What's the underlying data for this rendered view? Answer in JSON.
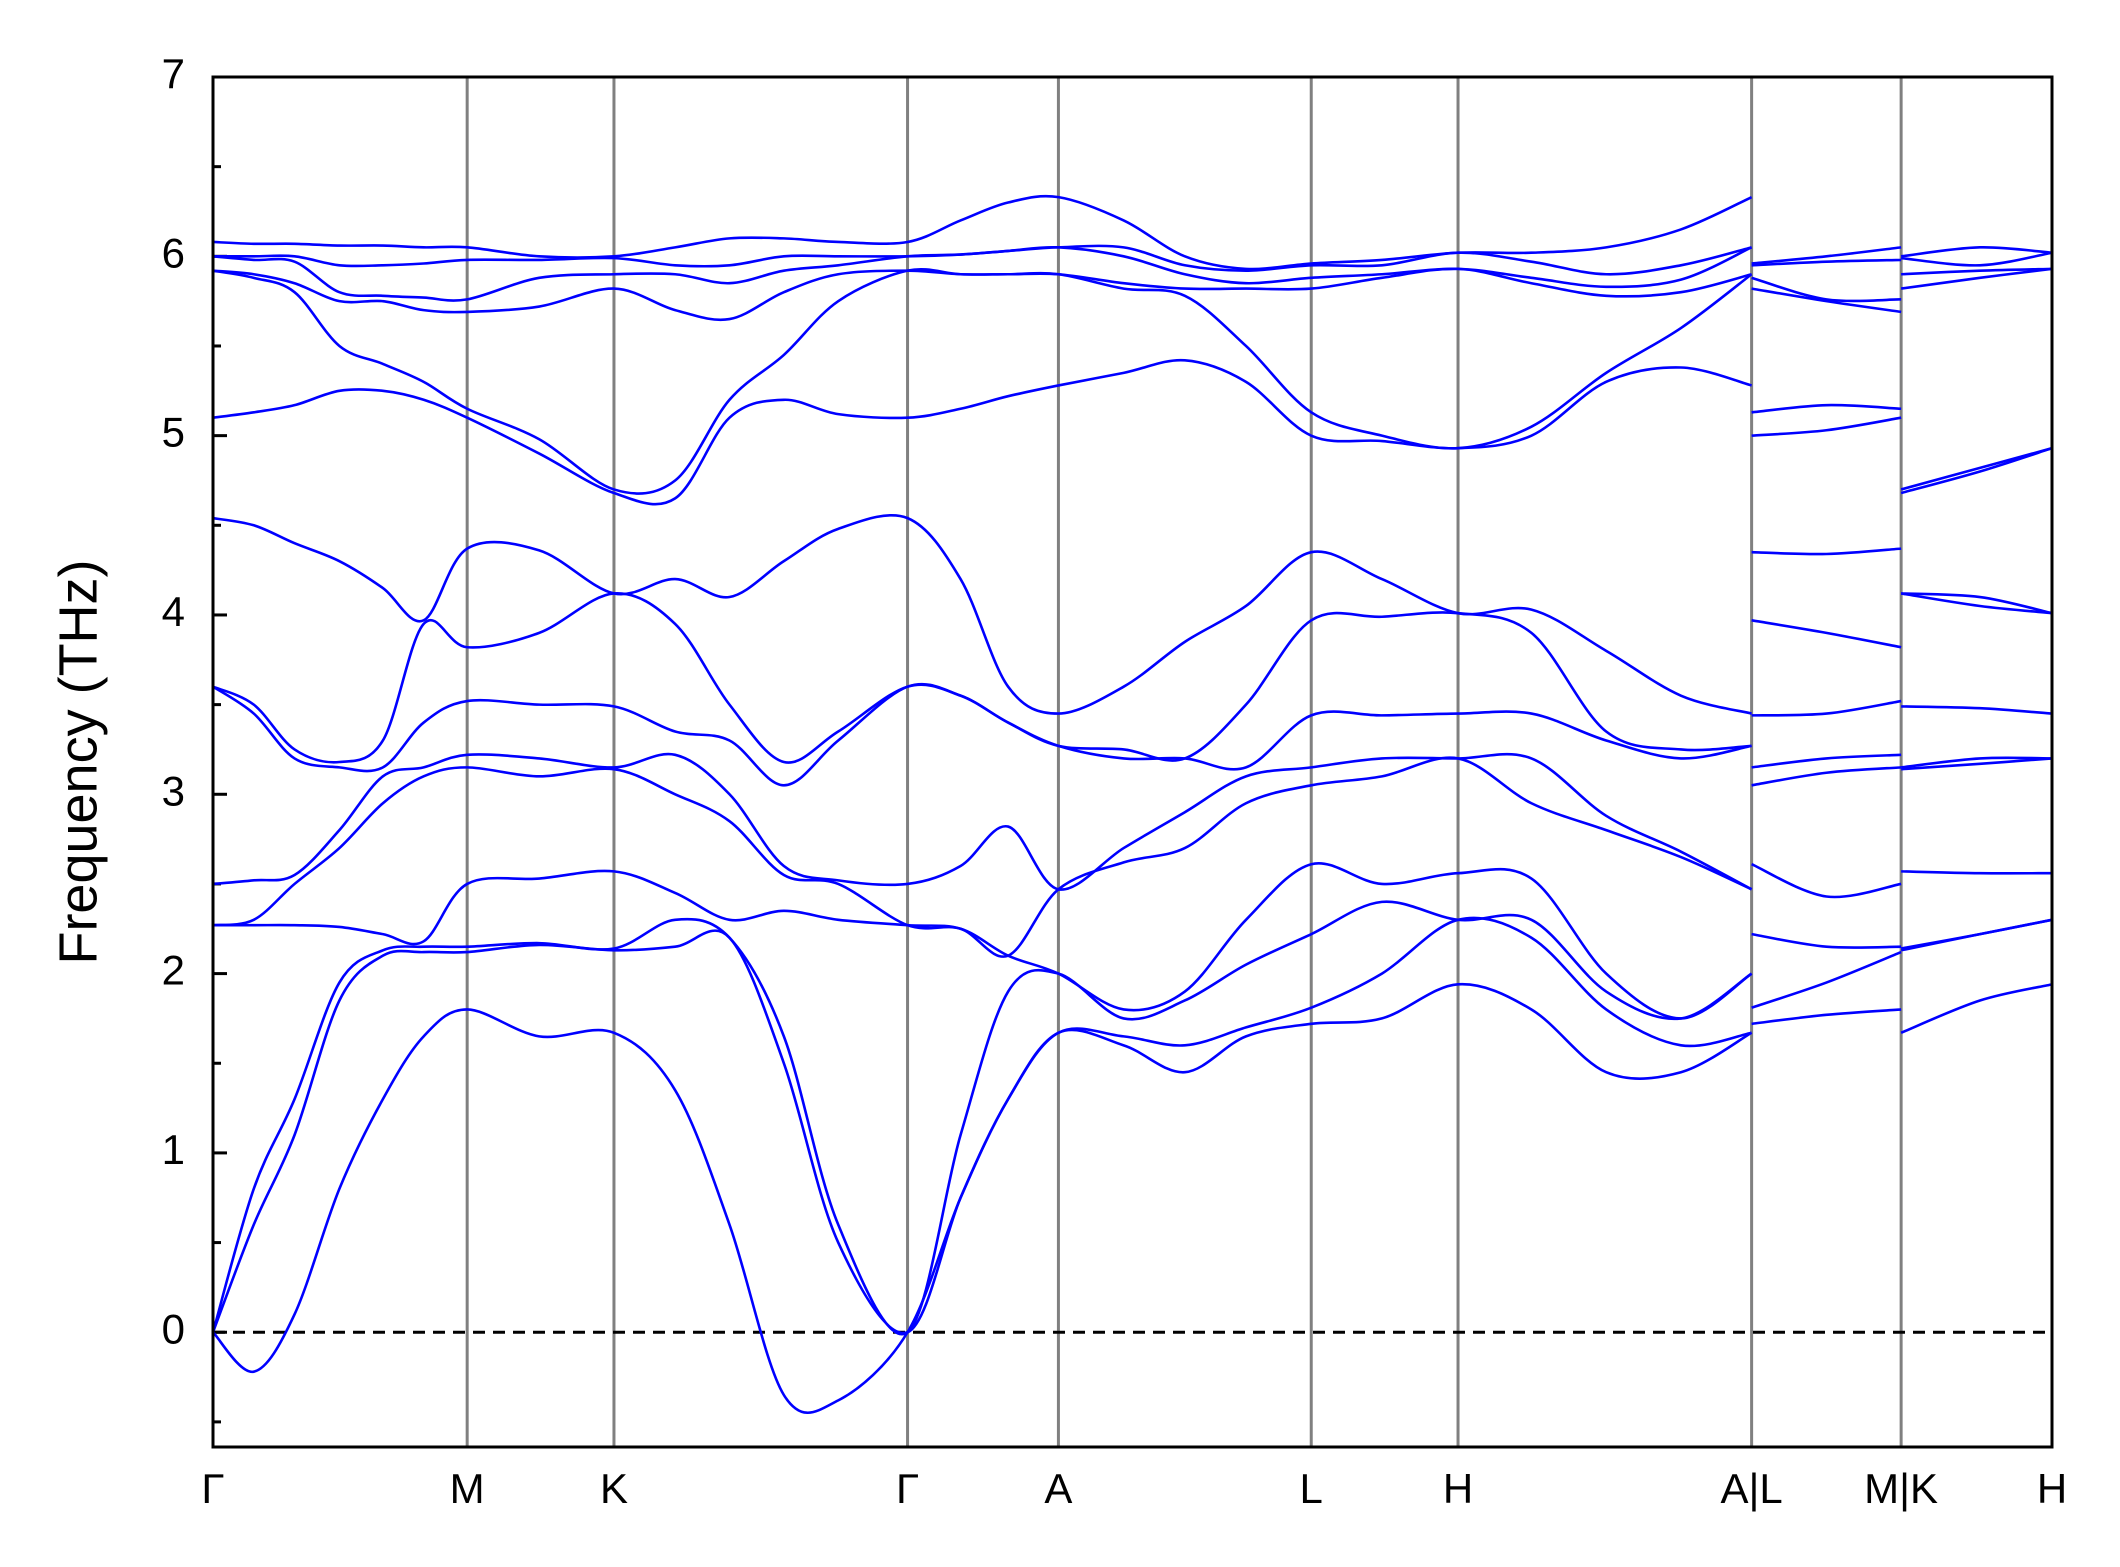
{
  "chart_data": {
    "type": "line",
    "ylabel": "Frequency (THz)",
    "color": "#0000ff",
    "x": [
      0,
      0.3,
      0.6,
      0.93,
      1.25,
      1.55,
      1.87,
      2.4,
      2.95,
      3.4,
      3.8,
      4.2,
      4.6,
      5.11,
      5.5,
      5.85,
      6.22,
      6.7,
      7.15,
      7.6,
      8.08,
      8.6,
      9.16,
      9.7,
      10.25,
      10.8,
      11.32,
      11.32,
      11.32,
      11.87,
      12.42,
      12.42,
      12.42,
      13.0,
      13.53
    ],
    "xlim": [
      0,
      13.53
    ],
    "xticks": [
      {
        "value": 0,
        "label": "Γ"
      },
      {
        "value": 1.87,
        "label": "M"
      },
      {
        "value": 2.95,
        "label": "K"
      },
      {
        "value": 5.11,
        "label": "Γ"
      },
      {
        "value": 6.22,
        "label": "A"
      },
      {
        "value": 8.08,
        "label": "L"
      },
      {
        "value": 9.16,
        "label": "H"
      },
      {
        "value": 11.32,
        "label": "A|L"
      },
      {
        "value": 12.42,
        "label": "M|K"
      },
      {
        "value": 13.53,
        "label": "H"
      }
    ],
    "ylim": [
      -0.64,
      7
    ],
    "yticks": [
      0,
      1,
      2,
      3,
      4,
      5,
      6,
      7
    ],
    "yminor_ticks": [
      -0.5,
      0.5,
      1.5,
      2.5,
      3.5,
      4.5,
      5.5,
      6.5
    ],
    "series": [
      {
        "values": [
          0,
          -0.22,
          0.1,
          0.8,
          1.3,
          1.65,
          1.8,
          1.65,
          1.67,
          1.35,
          0.6,
          -0.35,
          -0.38,
          0,
          0.75,
          1.3,
          1.67,
          1.6,
          1.45,
          1.65,
          1.72,
          1.75,
          1.94,
          1.8,
          1.45,
          1.45,
          1.67,
          null,
          1.72,
          1.77,
          1.8,
          null,
          1.67,
          1.85,
          1.94
        ]
      },
      {
        "values": [
          0,
          0.6,
          1.1,
          1.85,
          2.1,
          2.12,
          2.12,
          2.16,
          2.13,
          2.15,
          2.2,
          1.5,
          0.5,
          0,
          0.75,
          1.3,
          1.67,
          1.65,
          1.6,
          1.7,
          1.81,
          2.0,
          2.3,
          2.2,
          1.8,
          1.6,
          1.67,
          null,
          1.81,
          1.95,
          2.12,
          null,
          2.13,
          2.22,
          2.3
        ]
      },
      {
        "values": [
          0,
          0.8,
          1.3,
          1.95,
          2.13,
          2.15,
          2.15,
          2.17,
          2.14,
          2.3,
          2.2,
          1.65,
          0.6,
          0,
          1.1,
          1.9,
          2.0,
          1.75,
          1.85,
          2.05,
          2.22,
          2.4,
          2.3,
          2.3,
          1.9,
          1.75,
          2.0,
          null,
          2.22,
          2.15,
          2.15,
          null,
          2.14,
          2.22,
          2.3
        ]
      },
      {
        "values": [
          2.27,
          2.27,
          2.27,
          2.26,
          2.22,
          2.18,
          2.5,
          2.53,
          2.57,
          2.45,
          2.3,
          2.35,
          2.3,
          2.27,
          2.25,
          2.1,
          2.0,
          1.8,
          1.9,
          2.3,
          2.61,
          2.5,
          2.56,
          2.53,
          2.0,
          1.75,
          2.0,
          null,
          2.61,
          2.43,
          2.5,
          null,
          2.57,
          2.56,
          2.56
        ]
      },
      {
        "values": [
          2.27,
          2.3,
          2.5,
          2.7,
          2.95,
          3.1,
          3.15,
          3.1,
          3.14,
          3.0,
          2.85,
          2.55,
          2.5,
          2.27,
          2.25,
          2.1,
          2.47,
          2.62,
          2.7,
          2.95,
          3.05,
          3.1,
          3.2,
          2.95,
          2.8,
          2.65,
          2.47,
          null,
          3.05,
          3.12,
          3.15,
          null,
          3.14,
          3.17,
          3.2
        ]
      },
      {
        "values": [
          2.5,
          2.52,
          2.55,
          2.8,
          3.1,
          3.15,
          3.22,
          3.2,
          3.15,
          3.22,
          3.0,
          2.6,
          2.52,
          2.5,
          2.6,
          2.82,
          2.47,
          2.7,
          2.9,
          3.1,
          3.15,
          3.2,
          3.2,
          3.2,
          2.88,
          2.68,
          2.47,
          null,
          3.15,
          3.2,
          3.22,
          null,
          3.15,
          3.2,
          3.2
        ]
      },
      {
        "values": [
          3.6,
          3.45,
          3.2,
          3.15,
          3.15,
          3.4,
          3.52,
          3.5,
          3.49,
          3.35,
          3.3,
          3.05,
          3.3,
          3.6,
          3.55,
          3.4,
          3.27,
          3.2,
          3.2,
          3.15,
          3.44,
          3.44,
          3.45,
          3.45,
          3.3,
          3.2,
          3.27,
          null,
          3.44,
          3.45,
          3.52,
          null,
          3.49,
          3.48,
          3.45
        ]
      },
      {
        "values": [
          3.6,
          3.5,
          3.25,
          3.18,
          3.3,
          3.95,
          3.82,
          3.9,
          4.12,
          3.95,
          3.5,
          3.18,
          3.35,
          3.6,
          3.55,
          3.4,
          3.27,
          3.25,
          3.2,
          3.5,
          3.97,
          3.99,
          4.01,
          3.9,
          3.35,
          3.25,
          3.27,
          null,
          3.97,
          3.9,
          3.82,
          null,
          4.12,
          4.05,
          4.01
        ]
      },
      {
        "values": [
          4.54,
          4.5,
          4.4,
          4.3,
          4.15,
          3.97,
          4.37,
          4.36,
          4.12,
          4.2,
          4.1,
          4.3,
          4.48,
          4.54,
          4.2,
          3.6,
          3.45,
          3.6,
          3.85,
          4.05,
          4.35,
          4.2,
          4.01,
          4.03,
          3.8,
          3.55,
          3.45,
          null,
          4.35,
          4.34,
          4.37,
          null,
          4.12,
          4.1,
          4.01
        ]
      },
      {
        "values": [
          5.1,
          5.13,
          5.17,
          5.25,
          5.25,
          5.2,
          5.1,
          4.9,
          4.68,
          4.65,
          5.1,
          5.2,
          5.12,
          5.1,
          5.15,
          5.22,
          5.28,
          5.35,
          5.42,
          5.3,
          5.0,
          4.97,
          4.93,
          5.0,
          5.3,
          5.38,
          5.28,
          null,
          5.0,
          5.03,
          5.1,
          null,
          4.68,
          4.8,
          4.93
        ]
      },
      {
        "values": [
          5.92,
          5.88,
          5.8,
          5.5,
          5.4,
          5.3,
          5.15,
          4.98,
          4.7,
          4.75,
          5.2,
          5.45,
          5.75,
          5.92,
          5.9,
          5.9,
          5.9,
          5.82,
          5.78,
          5.5,
          5.13,
          5.0,
          4.93,
          5.05,
          5.35,
          5.6,
          5.9,
          null,
          5.13,
          5.17,
          5.15,
          null,
          4.7,
          4.82,
          4.93
        ]
      },
      {
        "values": [
          5.92,
          5.9,
          5.85,
          5.75,
          5.75,
          5.7,
          5.69,
          5.72,
          5.82,
          5.7,
          5.65,
          5.8,
          5.9,
          5.92,
          5.9,
          5.9,
          5.9,
          5.85,
          5.82,
          5.82,
          5.82,
          5.88,
          5.93,
          5.85,
          5.78,
          5.8,
          5.9,
          null,
          5.82,
          5.75,
          5.69,
          null,
          5.82,
          5.88,
          5.93
        ]
      },
      {
        "values": [
          6.0,
          5.98,
          5.97,
          5.8,
          5.78,
          5.77,
          5.76,
          5.88,
          5.9,
          5.9,
          5.85,
          5.92,
          5.95,
          6.0,
          6.01,
          6.03,
          6.05,
          6.0,
          5.9,
          5.85,
          5.88,
          5.9,
          5.93,
          5.88,
          5.83,
          5.87,
          6.05,
          null,
          5.88,
          5.76,
          5.76,
          null,
          5.9,
          5.92,
          5.93
        ]
      },
      {
        "values": [
          6.0,
          6.0,
          6.0,
          5.95,
          5.95,
          5.96,
          5.98,
          5.98,
          5.99,
          5.95,
          5.95,
          6.0,
          6.0,
          6.0,
          6.01,
          6.03,
          6.05,
          6.05,
          5.95,
          5.92,
          5.95,
          5.95,
          6.02,
          5.97,
          5.9,
          5.95,
          6.05,
          null,
          5.95,
          5.97,
          5.98,
          null,
          5.99,
          5.95,
          6.02
        ]
      },
      {
        "values": [
          6.08,
          6.07,
          6.07,
          6.06,
          6.06,
          6.05,
          6.05,
          6.0,
          6.0,
          6.05,
          6.1,
          6.1,
          6.08,
          6.08,
          6.2,
          6.3,
          6.33,
          6.2,
          6.0,
          5.93,
          5.96,
          5.98,
          6.02,
          6.02,
          6.05,
          6.15,
          6.33,
          null,
          5.96,
          6.0,
          6.05,
          null,
          6.0,
          6.05,
          6.02
        ]
      }
    ]
  }
}
